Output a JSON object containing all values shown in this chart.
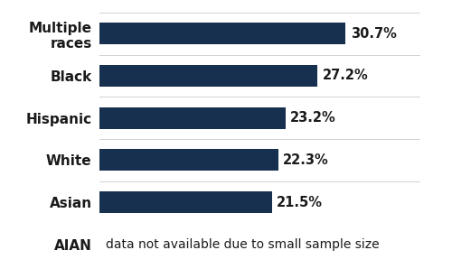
{
  "categories": [
    "Multiple\nraces",
    "Black",
    "Hispanic",
    "White",
    "Asian",
    "AIAN"
  ],
  "values": [
    30.7,
    27.2,
    23.2,
    22.3,
    21.5,
    null
  ],
  "labels": [
    "30.7%",
    "27.2%",
    "23.2%",
    "22.3%",
    "21.5%",
    ""
  ],
  "aian_text": "data not available due to small sample size",
  "bar_color": "#17304f",
  "background_color": "#ffffff",
  "text_color": "#1a1a1a",
  "label_fontsize": 10.5,
  "tick_fontsize": 11,
  "bar_height": 0.52,
  "xlim": [
    0,
    40
  ],
  "fig_width": 5.0,
  "fig_height": 3.08,
  "dpi": 100
}
